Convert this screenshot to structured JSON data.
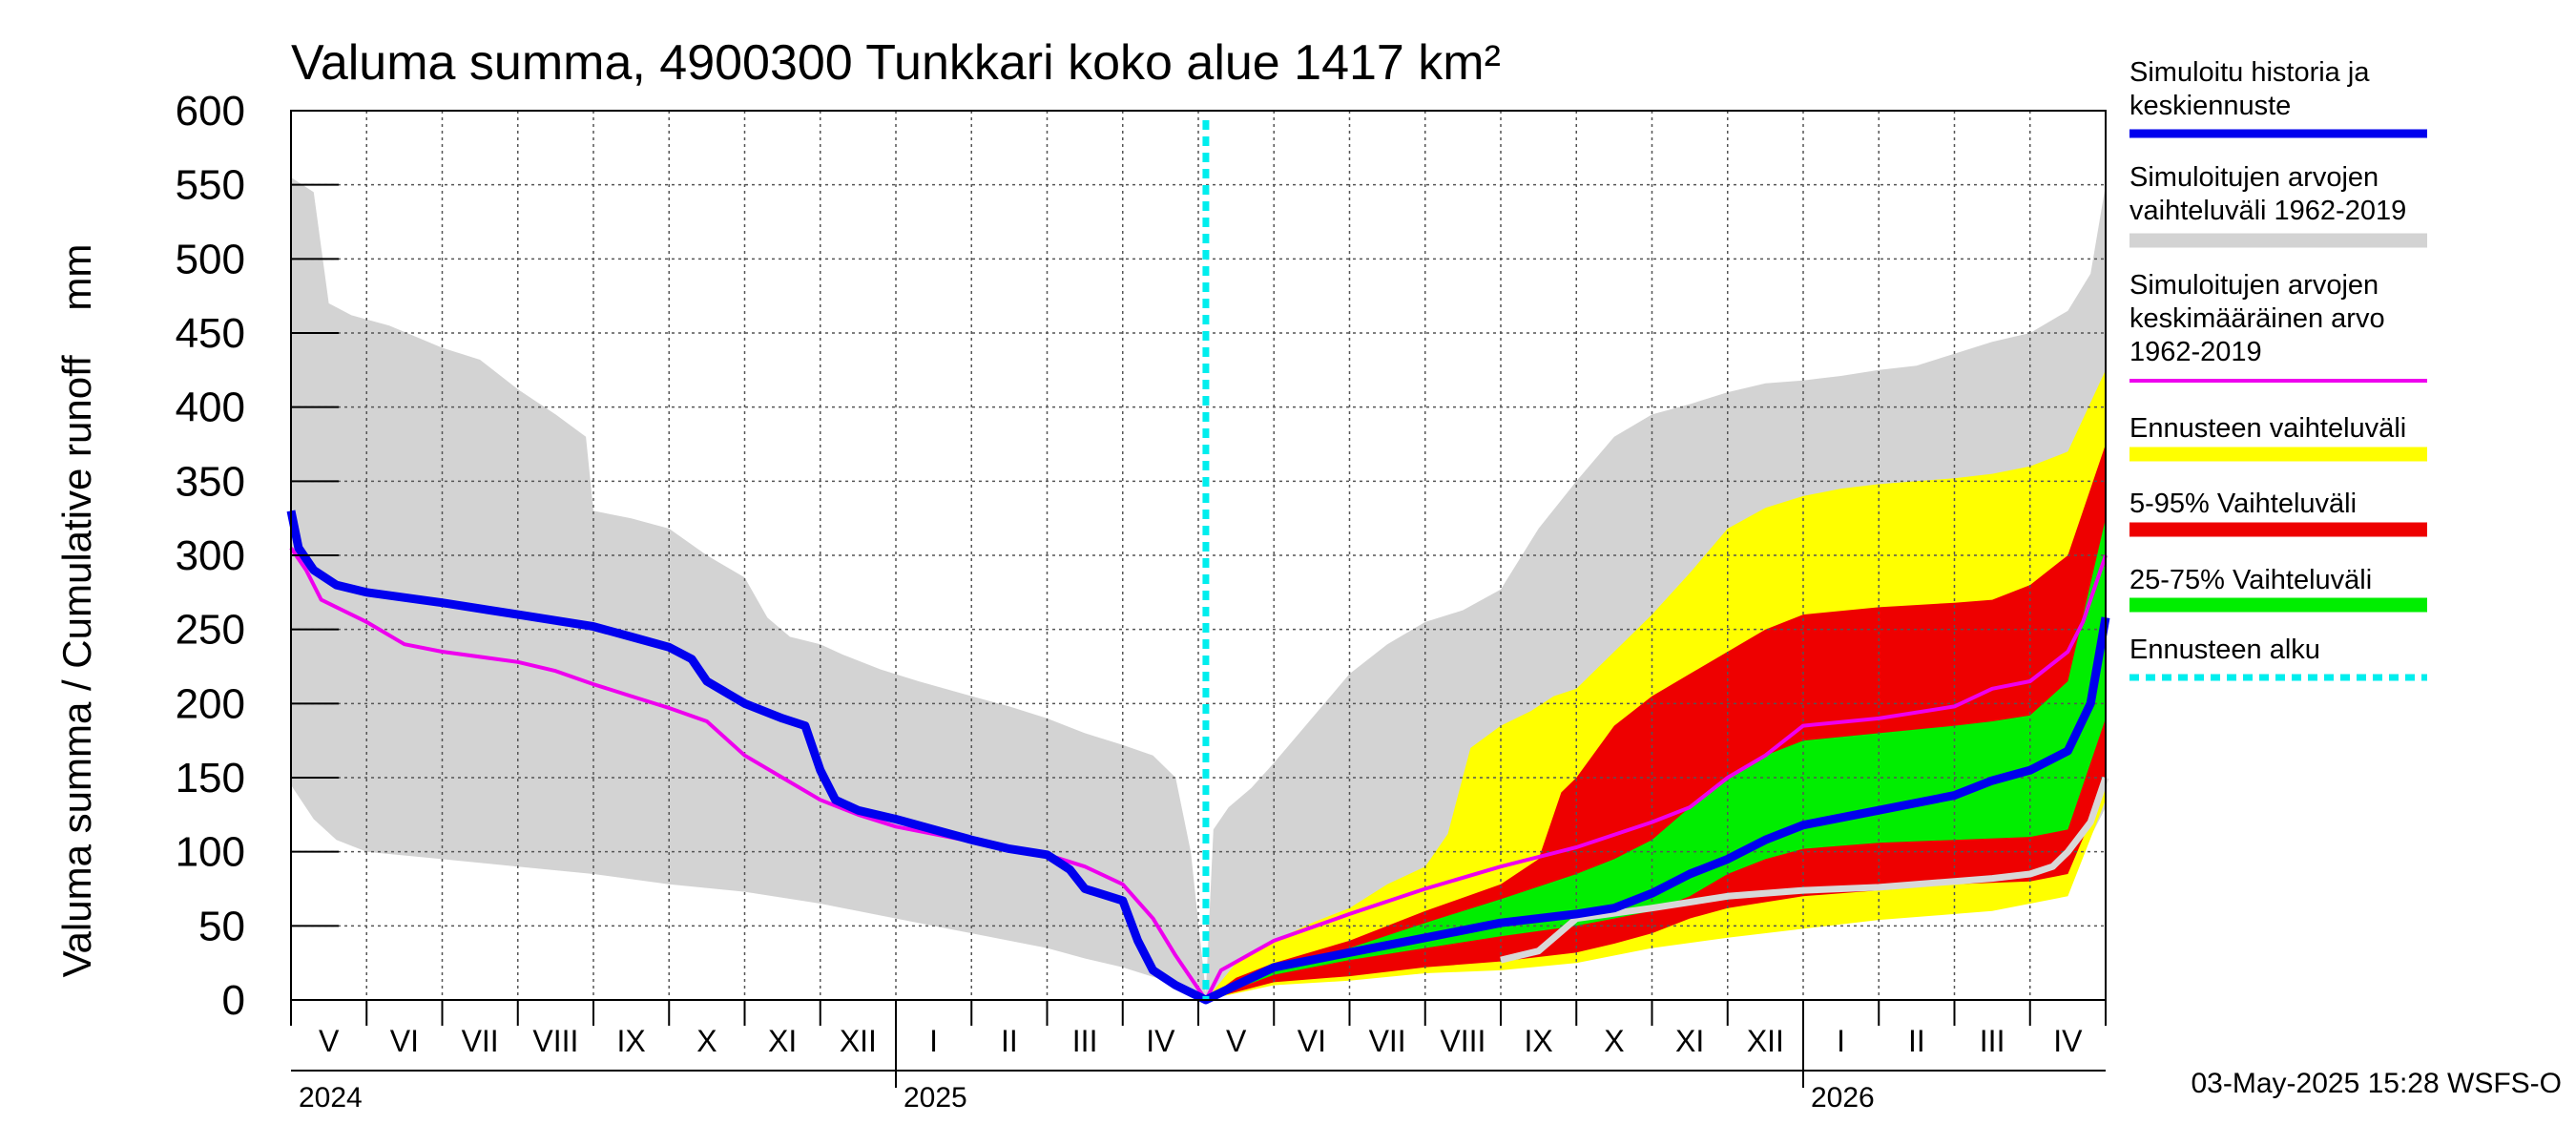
{
  "chart_data": {
    "type": "area",
    "title": "Valuma summa, 4900300 Tunkkari koko alue 1417 km²",
    "ylabel": "Valuma summa / Cumulative runoff    mm",
    "ylim": [
      0,
      600
    ],
    "yticks": [
      0,
      50,
      100,
      150,
      200,
      250,
      300,
      350,
      400,
      450,
      500,
      550,
      600
    ],
    "x_unit": "months from start of May 2024",
    "xlim": [
      0,
      24
    ],
    "forecast_start": 12.1,
    "months": [
      "V",
      "VI",
      "VII",
      "VIII",
      "IX",
      "X",
      "XI",
      "XII",
      "I",
      "II",
      "III",
      "IV",
      "V",
      "VI",
      "VII",
      "VIII",
      "IX",
      "X",
      "XI",
      "XII",
      "I",
      "II",
      "III",
      "IV"
    ],
    "years": [
      {
        "label": "2024",
        "x": 0
      },
      {
        "label": "2025",
        "x": 8
      },
      {
        "label": "2026",
        "x": 20
      }
    ],
    "timestamp": "03-May-2025 15:28 WSFS-O",
    "legend": [
      {
        "key": "history",
        "lines": [
          "Simuloitu historia ja",
          "keskiennuste"
        ],
        "color": "#0000ee"
      },
      {
        "key": "sim_range",
        "lines": [
          "Simuloitujen arvojen",
          "vaihteluväli 1962-2019"
        ],
        "color": "#d3d3d3"
      },
      {
        "key": "sim_mean",
        "lines": [
          "Simuloitujen arvojen",
          "keskimääräinen arvo",
          "   1962-2019"
        ],
        "color": "#ee00ee"
      },
      {
        "key": "fc_range",
        "lines": [
          "Ennusteen vaihteluväli"
        ],
        "color": "#ffff00"
      },
      {
        "key": "p5_95",
        "lines": [
          "5-95% Vaihteluväli"
        ],
        "color": "#ee0000"
      },
      {
        "key": "p25_75",
        "lines": [
          "25-75% Vaihteluväli"
        ],
        "color": "#00ee00"
      },
      {
        "key": "fc_start",
        "lines": [
          "Ennusteen alku"
        ],
        "color": "#00eeee"
      }
    ],
    "series": {
      "sim_range_upper": [
        [
          0,
          555
        ],
        [
          0.3,
          545
        ],
        [
          0.5,
          470
        ],
        [
          0.8,
          462
        ],
        [
          1.3,
          455
        ],
        [
          2,
          440
        ],
        [
          2.5,
          432
        ],
        [
          3,
          412
        ],
        [
          3.5,
          395
        ],
        [
          3.9,
          380
        ],
        [
          4,
          330
        ],
        [
          4.5,
          325
        ],
        [
          5,
          318
        ],
        [
          5.5,
          300
        ],
        [
          6,
          285
        ],
        [
          6.3,
          258
        ],
        [
          6.6,
          245
        ],
        [
          7,
          240
        ],
        [
          7.3,
          233
        ],
        [
          7.8,
          223
        ],
        [
          8.3,
          215
        ],
        [
          9,
          205
        ],
        [
          9.5,
          198
        ],
        [
          10,
          190
        ],
        [
          10.5,
          180
        ],
        [
          11,
          172
        ],
        [
          11.4,
          165
        ],
        [
          11.7,
          150
        ],
        [
          11.9,
          100
        ],
        [
          12.1,
          5
        ],
        [
          12.2,
          115
        ],
        [
          12.4,
          130
        ],
        [
          12.7,
          143
        ],
        [
          13,
          160
        ],
        [
          13.5,
          190
        ],
        [
          14,
          220
        ],
        [
          14.5,
          240
        ],
        [
          15,
          255
        ],
        [
          15.5,
          263
        ],
        [
          16,
          277
        ],
        [
          16.5,
          318
        ],
        [
          17,
          350
        ],
        [
          17.5,
          380
        ],
        [
          18,
          395
        ],
        [
          18.5,
          402
        ],
        [
          19,
          410
        ],
        [
          19.5,
          416
        ],
        [
          20,
          418
        ],
        [
          20.5,
          421
        ],
        [
          21,
          425
        ],
        [
          21.5,
          428
        ],
        [
          22,
          436
        ],
        [
          22.5,
          444
        ],
        [
          23,
          450
        ],
        [
          23.5,
          465
        ],
        [
          23.8,
          490
        ],
        [
          24,
          550
        ]
      ],
      "sim_range_lower": [
        [
          0,
          145
        ],
        [
          0.3,
          122
        ],
        [
          0.6,
          108
        ],
        [
          1,
          100
        ],
        [
          2,
          95
        ],
        [
          3,
          90
        ],
        [
          4,
          85
        ],
        [
          5,
          78
        ],
        [
          6,
          73
        ],
        [
          7,
          65
        ],
        [
          8,
          55
        ],
        [
          9,
          45
        ],
        [
          10,
          35
        ],
        [
          10.5,
          28
        ],
        [
          11,
          22
        ],
        [
          11.5,
          14
        ],
        [
          11.8,
          8
        ],
        [
          12.1,
          0
        ],
        [
          12.3,
          4
        ],
        [
          13,
          10
        ],
        [
          14,
          14
        ],
        [
          15,
          18
        ],
        [
          16,
          24
        ],
        [
          16.5,
          30
        ],
        [
          17,
          40
        ],
        [
          17.5,
          46
        ],
        [
          18,
          48
        ],
        [
          19,
          52
        ],
        [
          20,
          56
        ],
        [
          21,
          60
        ],
        [
          22,
          64
        ],
        [
          22.5,
          66
        ],
        [
          23,
          68
        ],
        [
          23.4,
          72
        ],
        [
          23.7,
          100
        ],
        [
          24,
          130
        ]
      ],
      "fc_range_upper": [
        [
          12.1,
          0
        ],
        [
          12.5,
          25
        ],
        [
          13,
          40
        ],
        [
          13.5,
          52
        ],
        [
          14,
          62
        ],
        [
          14.5,
          78
        ],
        [
          15,
          90
        ],
        [
          15.3,
          112
        ],
        [
          15.6,
          170
        ],
        [
          16,
          185
        ],
        [
          16.4,
          195
        ],
        [
          16.7,
          205
        ],
        [
          17,
          210
        ],
        [
          17.5,
          235
        ],
        [
          18,
          260
        ],
        [
          18.5,
          288
        ],
        [
          19,
          318
        ],
        [
          19.5,
          332
        ],
        [
          20,
          340
        ],
        [
          20.5,
          345
        ],
        [
          21,
          348
        ],
        [
          21.5,
          350
        ],
        [
          22,
          352
        ],
        [
          22.5,
          355
        ],
        [
          23,
          360
        ],
        [
          23.5,
          370
        ],
        [
          24,
          425
        ]
      ],
      "fc_range_lower": [
        [
          12.1,
          0
        ],
        [
          13,
          10
        ],
        [
          14,
          13
        ],
        [
          15,
          18
        ],
        [
          16,
          20
        ],
        [
          17,
          25
        ],
        [
          18,
          35
        ],
        [
          19,
          42
        ],
        [
          20,
          48
        ],
        [
          21,
          54
        ],
        [
          22,
          58
        ],
        [
          22.5,
          60
        ],
        [
          23,
          65
        ],
        [
          23.5,
          70
        ],
        [
          24,
          135
        ]
      ],
      "p5_95_upper": [
        [
          12.1,
          0
        ],
        [
          12.5,
          15
        ],
        [
          13,
          25
        ],
        [
          14,
          40
        ],
        [
          15,
          60
        ],
        [
          16,
          78
        ],
        [
          16.5,
          95
        ],
        [
          16.8,
          140
        ],
        [
          17,
          150
        ],
        [
          17.5,
          185
        ],
        [
          18,
          205
        ],
        [
          18.5,
          220
        ],
        [
          19,
          235
        ],
        [
          19.5,
          250
        ],
        [
          20,
          260
        ],
        [
          21,
          265
        ],
        [
          22,
          268
        ],
        [
          22.5,
          270
        ],
        [
          23,
          280
        ],
        [
          23.5,
          300
        ],
        [
          24,
          375
        ]
      ],
      "p5_95_lower": [
        [
          12.1,
          0
        ],
        [
          13,
          12
        ],
        [
          14,
          16
        ],
        [
          15,
          22
        ],
        [
          16,
          26
        ],
        [
          17,
          32
        ],
        [
          17.5,
          38
        ],
        [
          18,
          45
        ],
        [
          18.5,
          55
        ],
        [
          19,
          62
        ],
        [
          20,
          70
        ],
        [
          21,
          74
        ],
        [
          22,
          78
        ],
        [
          23,
          80
        ],
        [
          23.5,
          85
        ],
        [
          24,
          145
        ]
      ],
      "p25_75_upper": [
        [
          12.1,
          0
        ],
        [
          13,
          20
        ],
        [
          14,
          35
        ],
        [
          15,
          52
        ],
        [
          16,
          68
        ],
        [
          17,
          85
        ],
        [
          17.5,
          95
        ],
        [
          18,
          108
        ],
        [
          18.5,
          130
        ],
        [
          19,
          150
        ],
        [
          19.5,
          165
        ],
        [
          20,
          175
        ],
        [
          21,
          180
        ],
        [
          22,
          185
        ],
        [
          22.5,
          188
        ],
        [
          23,
          192
        ],
        [
          23.5,
          215
        ],
        [
          24,
          325
        ]
      ],
      "p25_75_lower": [
        [
          12.1,
          0
        ],
        [
          13,
          17
        ],
        [
          14,
          27
        ],
        [
          15,
          35
        ],
        [
          16,
          43
        ],
        [
          17,
          50
        ],
        [
          17.5,
          55
        ],
        [
          18,
          60
        ],
        [
          18.5,
          70
        ],
        [
          19,
          85
        ],
        [
          19.5,
          95
        ],
        [
          20,
          102
        ],
        [
          21,
          106
        ],
        [
          22,
          108
        ],
        [
          23,
          110
        ],
        [
          23.5,
          115
        ],
        [
          24,
          190
        ]
      ],
      "history": [
        [
          0,
          330
        ],
        [
          0.1,
          305
        ],
        [
          0.3,
          290
        ],
        [
          0.6,
          280
        ],
        [
          1,
          275
        ],
        [
          2,
          268
        ],
        [
          3,
          260
        ],
        [
          4,
          252
        ],
        [
          4.5,
          245
        ],
        [
          5,
          238
        ],
        [
          5.3,
          230
        ],
        [
          5.5,
          215
        ],
        [
          6,
          200
        ],
        [
          6.5,
          190
        ],
        [
          6.8,
          185
        ],
        [
          7,
          155
        ],
        [
          7.2,
          135
        ],
        [
          7.5,
          128
        ],
        [
          8,
          122
        ],
        [
          8.5,
          115
        ],
        [
          9,
          108
        ],
        [
          9.5,
          102
        ],
        [
          10,
          98
        ],
        [
          10.3,
          88
        ],
        [
          10.5,
          75
        ],
        [
          11,
          67
        ],
        [
          11.2,
          40
        ],
        [
          11.4,
          20
        ],
        [
          11.7,
          10
        ],
        [
          12.1,
          0
        ],
        [
          12.5,
          10
        ],
        [
          13,
          22
        ],
        [
          14,
          32
        ],
        [
          15,
          42
        ],
        [
          16,
          52
        ],
        [
          17,
          58
        ],
        [
          17.5,
          62
        ],
        [
          18,
          72
        ],
        [
          18.5,
          85
        ],
        [
          19,
          95
        ],
        [
          19.5,
          108
        ],
        [
          20,
          118
        ],
        [
          21,
          128
        ],
        [
          22,
          138
        ],
        [
          22.5,
          148
        ],
        [
          23,
          155
        ],
        [
          23.5,
          168
        ],
        [
          23.8,
          200
        ],
        [
          24,
          258
        ]
      ],
      "sim_mean": [
        [
          0,
          305
        ],
        [
          0.2,
          290
        ],
        [
          0.4,
          270
        ],
        [
          1,
          255
        ],
        [
          1.5,
          240
        ],
        [
          2,
          235
        ],
        [
          3,
          228
        ],
        [
          3.5,
          222
        ],
        [
          4,
          213
        ],
        [
          4.5,
          205
        ],
        [
          5,
          197
        ],
        [
          5.5,
          188
        ],
        [
          6,
          165
        ],
        [
          6.5,
          150
        ],
        [
          7,
          135
        ],
        [
          7.5,
          125
        ],
        [
          8,
          117
        ],
        [
          9,
          107
        ],
        [
          10,
          98
        ],
        [
          10.5,
          90
        ],
        [
          11,
          78
        ],
        [
          11.4,
          55
        ],
        [
          11.7,
          30
        ],
        [
          12.1,
          0
        ],
        [
          12.3,
          20
        ],
        [
          13,
          40
        ],
        [
          14,
          58
        ],
        [
          15,
          75
        ],
        [
          16,
          90
        ],
        [
          17,
          103
        ],
        [
          18,
          120
        ],
        [
          18.5,
          130
        ],
        [
          19,
          150
        ],
        [
          19.5,
          165
        ],
        [
          20,
          185
        ],
        [
          21,
          190
        ],
        [
          22,
          198
        ],
        [
          22.5,
          210
        ],
        [
          23,
          215
        ],
        [
          23.5,
          235
        ],
        [
          23.7,
          255
        ],
        [
          24,
          300
        ]
      ],
      "grey_line": [
        [
          16,
          27
        ],
        [
          16.5,
          33
        ],
        [
          17,
          55
        ],
        [
          18,
          62
        ],
        [
          19,
          70
        ],
        [
          20,
          74
        ],
        [
          21,
          76
        ],
        [
          22,
          80
        ],
        [
          22.5,
          82
        ],
        [
          23,
          85
        ],
        [
          23.3,
          90
        ],
        [
          23.5,
          100
        ],
        [
          23.8,
          120
        ],
        [
          24,
          150
        ]
      ]
    }
  }
}
